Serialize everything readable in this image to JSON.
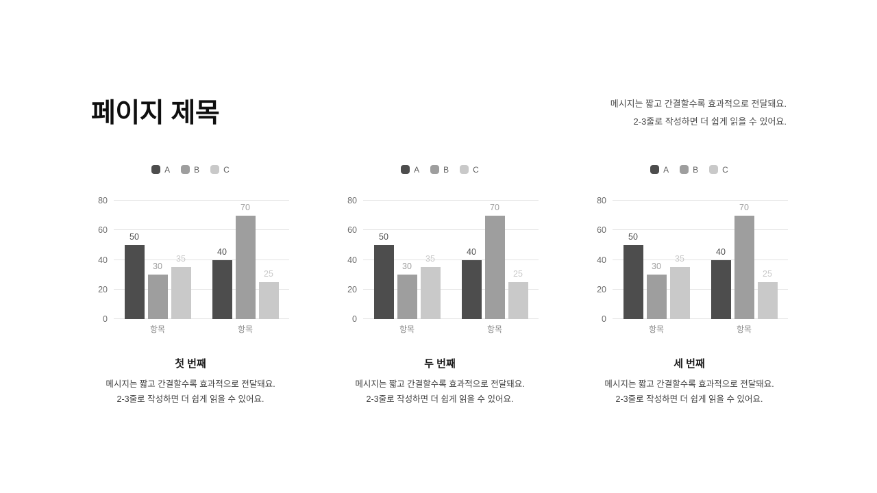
{
  "header": {
    "title": "페이지 제목",
    "note_line1": "메시지는 짧고 간결할수록 효과적으로 전달돼요.",
    "note_line2": "2-3줄로 작성하면 더 쉽게 읽을 수 있어요."
  },
  "palette": {
    "series_a": "#4d4d4d",
    "series_b": "#9e9e9e",
    "series_c": "#c9c9c9",
    "gridline": "#e3e3e3",
    "axis_tick_text": "#6b6b6b",
    "category_text": "#8d8d8d",
    "legend_text": "#5f5f5f"
  },
  "chart_data": [
    {
      "type": "bar",
      "title": "첫 번째",
      "categories": [
        "항목",
        "항목"
      ],
      "series": [
        {
          "name": "A",
          "values": [
            50,
            40
          ],
          "color": "#4d4d4d"
        },
        {
          "name": "B",
          "values": [
            30,
            70
          ],
          "color": "#9e9e9e"
        },
        {
          "name": "C",
          "values": [
            35,
            25
          ],
          "color": "#c9c9c9"
        }
      ],
      "ylim": [
        0,
        80
      ],
      "yticks": [
        0,
        20,
        40,
        60,
        80
      ],
      "grid": true,
      "legend_position": "top",
      "value_labels": true,
      "desc_line1": "메시지는 짧고 간결할수록 효과적으로 전달돼요.",
      "desc_line2": "2-3줄로 작성하면 더 쉽게 읽을 수 있어요."
    },
    {
      "type": "bar",
      "title": "두 번째",
      "categories": [
        "항목",
        "항목"
      ],
      "series": [
        {
          "name": "A",
          "values": [
            50,
            40
          ],
          "color": "#4d4d4d"
        },
        {
          "name": "B",
          "values": [
            30,
            70
          ],
          "color": "#9e9e9e"
        },
        {
          "name": "C",
          "values": [
            35,
            25
          ],
          "color": "#c9c9c9"
        }
      ],
      "ylim": [
        0,
        80
      ],
      "yticks": [
        0,
        20,
        40,
        60,
        80
      ],
      "grid": true,
      "legend_position": "top",
      "value_labels": true,
      "desc_line1": "메시지는 짧고 간결할수록 효과적으로 전달돼요.",
      "desc_line2": "2-3줄로 작성하면 더 쉽게 읽을 수 있어요."
    },
    {
      "type": "bar",
      "title": "세 번째",
      "categories": [
        "항목",
        "항목"
      ],
      "series": [
        {
          "name": "A",
          "values": [
            50,
            40
          ],
          "color": "#4d4d4d"
        },
        {
          "name": "B",
          "values": [
            30,
            70
          ],
          "color": "#9e9e9e"
        },
        {
          "name": "C",
          "values": [
            35,
            25
          ],
          "color": "#c9c9c9"
        }
      ],
      "ylim": [
        0,
        80
      ],
      "yticks": [
        0,
        20,
        40,
        60,
        80
      ],
      "grid": true,
      "legend_position": "top",
      "value_labels": true,
      "desc_line1": "메시지는 짧고 간결할수록 효과적으로 전달돼요.",
      "desc_line2": "2-3줄로 작성하면 더 쉽게 읽을 수 있어요."
    }
  ]
}
